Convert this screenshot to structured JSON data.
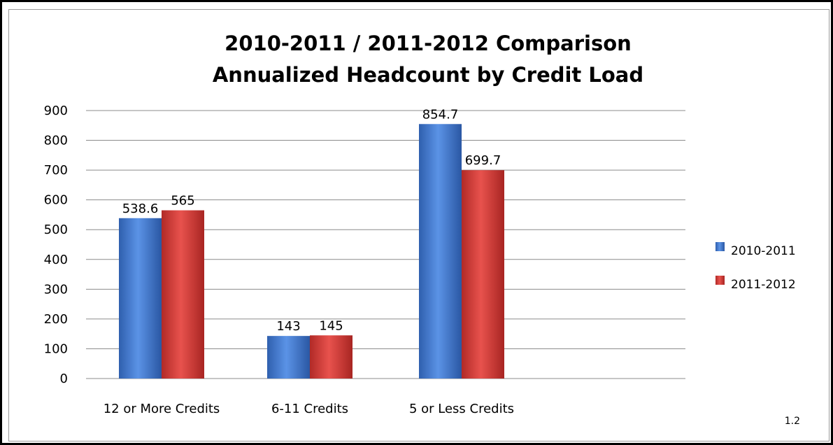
{
  "chart_data": {
    "type": "bar",
    "title": "2010-2011 / 2011-2012 Comparison",
    "subtitle": "Annualized Headcount by Credit Load",
    "categories": [
      "12 or More Credits",
      "6-11 Credits",
      "5 or Less Credits"
    ],
    "series": [
      {
        "name": "2010-2011",
        "values": [
          538.6,
          143,
          854.7
        ],
        "labels": [
          "538.6",
          "143",
          "854.7"
        ],
        "color": "#4a7fd0"
      },
      {
        "name": "2011-2012",
        "values": [
          565,
          145,
          699.7
        ],
        "labels": [
          "565",
          "145",
          "699.7"
        ],
        "color": "#d9403c"
      }
    ],
    "ylim": [
      0,
      900
    ],
    "yticks": [
      "0",
      "100",
      "200",
      "300",
      "400",
      "500",
      "600",
      "700",
      "800",
      "900"
    ],
    "grid": true,
    "legend": "right"
  },
  "page_number": "1.2"
}
